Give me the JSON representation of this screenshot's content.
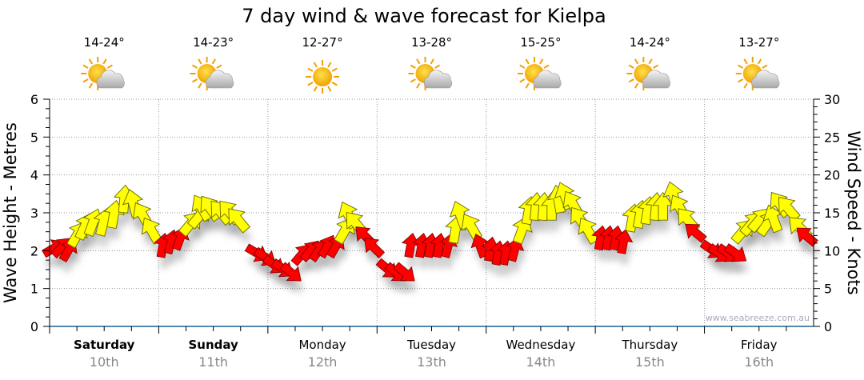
{
  "chart_data": {
    "type": "scatter",
    "title": "7 day wind & wave forecast for Kielpa",
    "ylabel": "Wave Height - Metres",
    "y2label": "Wind Speed - Knots",
    "ylim": [
      0,
      6
    ],
    "y2lim": [
      0,
      30
    ],
    "yticks": [
      "0",
      "1",
      "2",
      "3",
      "4",
      "5",
      "6"
    ],
    "y2ticks": [
      "0",
      "5",
      "10",
      "15",
      "20",
      "25",
      "30"
    ],
    "grid": true,
    "watermark": "www.seabreeze.com.au",
    "days": [
      {
        "day": "Saturday",
        "date": "10th",
        "temp": "14-24°",
        "icon": "sun-cloud-icon",
        "bold": true
      },
      {
        "day": "Sunday",
        "date": "11th",
        "temp": "14-23°",
        "icon": "sun-cloud-icon",
        "bold": true
      },
      {
        "day": "Monday",
        "date": "12th",
        "temp": "12-27°",
        "icon": "sun-icon",
        "bold": false
      },
      {
        "day": "Tuesday",
        "date": "13th",
        "temp": "13-28°",
        "icon": "sun-cloud-icon",
        "bold": false
      },
      {
        "day": "Wednesday",
        "date": "14th",
        "temp": "15-25°",
        "icon": "sun-cloud-icon",
        "bold": false
      },
      {
        "day": "Thursday",
        "date": "15th",
        "temp": "14-24°",
        "icon": "sun-cloud-icon",
        "bold": false
      },
      {
        "day": "Friday",
        "date": "16th",
        "temp": "13-27°",
        "icon": "sun-cloud-icon",
        "bold": false
      }
    ],
    "colors": {
      "strong": "#ffff00",
      "light": "#ff0000",
      "axis": "#1f5f8f"
    },
    "series_note": "wind arrows plotted at wave height (m); day = day index + fraction of day; dir = degrees the arrow points (0 = up)",
    "points": [
      {
        "t": 0.0,
        "wave": 2.0,
        "dir": 60,
        "c": "light"
      },
      {
        "t": 0.08,
        "wave": 2.0,
        "dir": 45,
        "c": "light"
      },
      {
        "t": 0.15,
        "wave": 1.9,
        "dir": 30,
        "c": "light"
      },
      {
        "t": 0.23,
        "wave": 2.3,
        "dir": 30,
        "c": "strong"
      },
      {
        "t": 0.3,
        "wave": 2.5,
        "dir": 25,
        "c": "strong"
      },
      {
        "t": 0.38,
        "wave": 2.6,
        "dir": 20,
        "c": "strong"
      },
      {
        "t": 0.48,
        "wave": 2.6,
        "dir": 15,
        "c": "strong"
      },
      {
        "t": 0.58,
        "wave": 2.8,
        "dir": 10,
        "c": "strong"
      },
      {
        "t": 0.68,
        "wave": 3.2,
        "dir": 5,
        "c": "strong"
      },
      {
        "t": 0.78,
        "wave": 3.1,
        "dir": -15,
        "c": "strong"
      },
      {
        "t": 0.88,
        "wave": 2.8,
        "dir": -30,
        "c": "strong"
      },
      {
        "t": 0.96,
        "wave": 2.4,
        "dir": -30,
        "c": "strong"
      },
      {
        "t": 1.03,
        "wave": 2.0,
        "dir": 10,
        "c": "light"
      },
      {
        "t": 1.1,
        "wave": 2.1,
        "dir": 15,
        "c": "light"
      },
      {
        "t": 1.18,
        "wave": 2.2,
        "dir": 20,
        "c": "light"
      },
      {
        "t": 1.26,
        "wave": 2.6,
        "dir": 40,
        "c": "strong"
      },
      {
        "t": 1.34,
        "wave": 2.8,
        "dir": 40,
        "c": "strong"
      },
      {
        "t": 1.42,
        "wave": 3.0,
        "dir": -30,
        "c": "strong"
      },
      {
        "t": 1.5,
        "wave": 3.0,
        "dir": -35,
        "c": "strong"
      },
      {
        "t": 1.6,
        "wave": 2.9,
        "dir": -40,
        "c": "strong"
      },
      {
        "t": 1.68,
        "wave": 2.9,
        "dir": -40,
        "c": "strong"
      },
      {
        "t": 1.76,
        "wave": 2.7,
        "dir": -40,
        "c": "strong"
      },
      {
        "t": 1.86,
        "wave": 2.0,
        "dir": 120,
        "c": "light"
      },
      {
        "t": 1.94,
        "wave": 1.9,
        "dir": 125,
        "c": "light"
      },
      {
        "t": 2.02,
        "wave": 1.7,
        "dir": 125,
        "c": "light"
      },
      {
        "t": 2.1,
        "wave": 1.6,
        "dir": 125,
        "c": "light"
      },
      {
        "t": 2.18,
        "wave": 1.5,
        "dir": 130,
        "c": "light"
      },
      {
        "t": 2.28,
        "wave": 1.8,
        "dir": 40,
        "c": "light"
      },
      {
        "t": 2.36,
        "wave": 1.9,
        "dir": 40,
        "c": "light"
      },
      {
        "t": 2.44,
        "wave": 1.9,
        "dir": 35,
        "c": "light"
      },
      {
        "t": 2.52,
        "wave": 2.0,
        "dir": 30,
        "c": "light"
      },
      {
        "t": 2.6,
        "wave": 2.0,
        "dir": 30,
        "c": "light"
      },
      {
        "t": 2.68,
        "wave": 2.4,
        "dir": 30,
        "c": "strong"
      },
      {
        "t": 2.76,
        "wave": 2.8,
        "dir": -25,
        "c": "strong"
      },
      {
        "t": 2.84,
        "wave": 2.6,
        "dir": -40,
        "c": "strong"
      },
      {
        "t": 2.92,
        "wave": 2.3,
        "dir": -45,
        "c": "light"
      },
      {
        "t": 3.0,
        "wave": 2.0,
        "dir": -45,
        "c": "light"
      },
      {
        "t": 3.06,
        "wave": 1.6,
        "dir": 130,
        "c": "light"
      },
      {
        "t": 3.14,
        "wave": 1.5,
        "dir": 130,
        "c": "light"
      },
      {
        "t": 3.22,
        "wave": 1.5,
        "dir": 130,
        "c": "light"
      },
      {
        "t": 3.3,
        "wave": 2.0,
        "dir": 10,
        "c": "light"
      },
      {
        "t": 3.4,
        "wave": 2.0,
        "dir": 10,
        "c": "light"
      },
      {
        "t": 3.48,
        "wave": 2.0,
        "dir": 10,
        "c": "light"
      },
      {
        "t": 3.56,
        "wave": 2.0,
        "dir": 10,
        "c": "light"
      },
      {
        "t": 3.64,
        "wave": 2.0,
        "dir": 15,
        "c": "light"
      },
      {
        "t": 3.71,
        "wave": 2.4,
        "dir": 10,
        "c": "strong"
      },
      {
        "t": 3.78,
        "wave": 2.8,
        "dir": -20,
        "c": "strong"
      },
      {
        "t": 3.89,
        "wave": 2.5,
        "dir": -30,
        "c": "strong"
      },
      {
        "t": 3.96,
        "wave": 2.0,
        "dir": -20,
        "c": "light"
      },
      {
        "t": 4.03,
        "wave": 1.9,
        "dir": 10,
        "c": "light"
      },
      {
        "t": 4.1,
        "wave": 1.8,
        "dir": 10,
        "c": "light"
      },
      {
        "t": 4.17,
        "wave": 1.8,
        "dir": 10,
        "c": "light"
      },
      {
        "t": 4.25,
        "wave": 1.9,
        "dir": 15,
        "c": "light"
      },
      {
        "t": 4.31,
        "wave": 2.4,
        "dir": 20,
        "c": "strong"
      },
      {
        "t": 4.38,
        "wave": 2.9,
        "dir": 10,
        "c": "strong"
      },
      {
        "t": 4.45,
        "wave": 3.0,
        "dir": 5,
        "c": "strong"
      },
      {
        "t": 4.52,
        "wave": 3.0,
        "dir": 5,
        "c": "strong"
      },
      {
        "t": 4.6,
        "wave": 3.0,
        "dir": 0,
        "c": "strong"
      },
      {
        "t": 4.67,
        "wave": 3.2,
        "dir": -10,
        "c": "strong"
      },
      {
        "t": 4.74,
        "wave": 3.3,
        "dir": -20,
        "c": "strong"
      },
      {
        "t": 4.82,
        "wave": 3.1,
        "dir": -30,
        "c": "strong"
      },
      {
        "t": 4.89,
        "wave": 2.7,
        "dir": -35,
        "c": "strong"
      },
      {
        "t": 4.96,
        "wave": 2.4,
        "dir": -30,
        "c": "strong"
      },
      {
        "t": 5.04,
        "wave": 2.2,
        "dir": 10,
        "c": "light"
      },
      {
        "t": 5.11,
        "wave": 2.2,
        "dir": 10,
        "c": "light"
      },
      {
        "t": 5.18,
        "wave": 2.2,
        "dir": 10,
        "c": "light"
      },
      {
        "t": 5.25,
        "wave": 2.1,
        "dir": 10,
        "c": "light"
      },
      {
        "t": 5.33,
        "wave": 2.7,
        "dir": 10,
        "c": "strong"
      },
      {
        "t": 5.4,
        "wave": 2.8,
        "dir": 10,
        "c": "strong"
      },
      {
        "t": 5.47,
        "wave": 2.9,
        "dir": 10,
        "c": "strong"
      },
      {
        "t": 5.55,
        "wave": 3.0,
        "dir": 5,
        "c": "strong"
      },
      {
        "t": 5.62,
        "wave": 3.0,
        "dir": 0,
        "c": "strong"
      },
      {
        "t": 5.73,
        "wave": 3.3,
        "dir": -15,
        "c": "strong"
      },
      {
        "t": 5.8,
        "wave": 3.0,
        "dir": -30,
        "c": "strong"
      },
      {
        "t": 5.88,
        "wave": 2.7,
        "dir": -40,
        "c": "strong"
      },
      {
        "t": 5.95,
        "wave": 2.4,
        "dir": -50,
        "c": "light"
      },
      {
        "t": 6.03,
        "wave": 2.1,
        "dir": 125,
        "c": "light"
      },
      {
        "t": 6.1,
        "wave": 2.0,
        "dir": 125,
        "c": "light"
      },
      {
        "t": 6.18,
        "wave": 2.0,
        "dir": 125,
        "c": "light"
      },
      {
        "t": 6.25,
        "wave": 2.0,
        "dir": 125,
        "c": "light"
      },
      {
        "t": 6.32,
        "wave": 2.4,
        "dir": 40,
        "c": "strong"
      },
      {
        "t": 6.4,
        "wave": 2.6,
        "dir": 40,
        "c": "strong"
      },
      {
        "t": 6.47,
        "wave": 2.7,
        "dir": 40,
        "c": "strong"
      },
      {
        "t": 6.55,
        "wave": 2.6,
        "dir": 35,
        "c": "strong"
      },
      {
        "t": 6.65,
        "wave": 2.7,
        "dir": -20,
        "c": "strong"
      },
      {
        "t": 6.72,
        "wave": 3.1,
        "dir": -35,
        "c": "strong"
      },
      {
        "t": 6.8,
        "wave": 3.0,
        "dir": -40,
        "c": "strong"
      },
      {
        "t": 6.91,
        "wave": 2.5,
        "dir": -45,
        "c": "strong"
      },
      {
        "t": 6.97,
        "wave": 2.3,
        "dir": -50,
        "c": "light"
      }
    ]
  }
}
